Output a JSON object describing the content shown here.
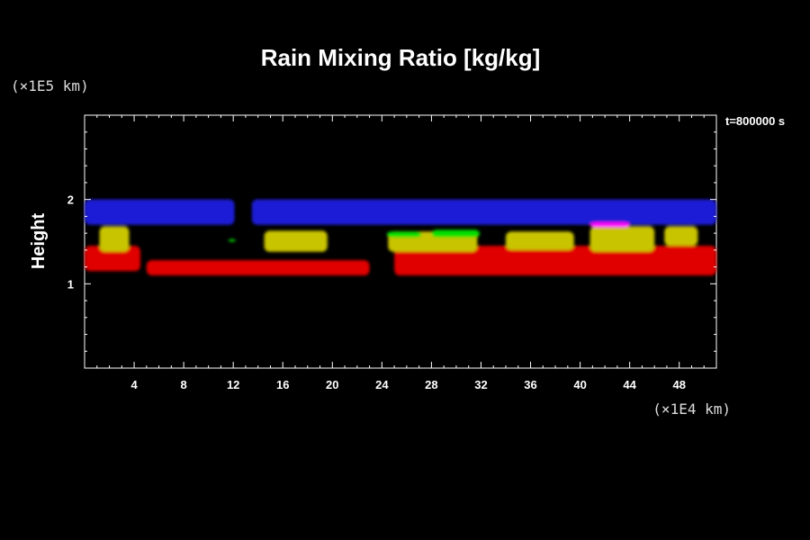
{
  "chart_data": {
    "type": "heatmap",
    "title": "Rain Mixing Ratio [kg/kg]",
    "ylabel": "Height",
    "y_unit": "(×1E5 km)",
    "x_unit": "(×1E4 km)",
    "time_label": "t=800000 s",
    "xlim": [
      0,
      51
    ],
    "ylim": [
      0,
      3
    ],
    "x_ticks": [
      "4",
      "8",
      "12",
      "16",
      "20",
      "24",
      "28",
      "32",
      "36",
      "40",
      "44",
      "48"
    ],
    "x_tick_values": [
      4,
      8,
      12,
      16,
      20,
      24,
      28,
      32,
      36,
      40,
      44,
      48
    ],
    "y_ticks": [
      "1",
      "2"
    ],
    "y_tick_values": [
      1,
      2
    ],
    "colors": {
      "blue": "#1a1fd6",
      "red": "#e00000",
      "yellow": "#c9c400",
      "green": "#00e000",
      "magenta": "#ff00ff"
    },
    "regions": [
      {
        "color": "blue",
        "x": [
          0,
          12.1
        ],
        "y": [
          1.7,
          2.0
        ]
      },
      {
        "color": "blue",
        "x": [
          13.5,
          51
        ],
        "y": [
          1.7,
          2.0
        ]
      },
      {
        "color": "red",
        "x": [
          0,
          4.5
        ],
        "y": [
          1.15,
          1.45
        ]
      },
      {
        "color": "red",
        "x": [
          5,
          23
        ],
        "y": [
          1.1,
          1.28
        ]
      },
      {
        "color": "red",
        "x": [
          25,
          51
        ],
        "y": [
          1.1,
          1.45
        ]
      },
      {
        "color": "yellow",
        "x": [
          1.2,
          3.6
        ],
        "y": [
          1.38,
          1.68
        ]
      },
      {
        "color": "yellow",
        "x": [
          14.5,
          19.6
        ],
        "y": [
          1.38,
          1.63
        ]
      },
      {
        "color": "yellow",
        "x": [
          24.5,
          31.7
        ],
        "y": [
          1.38,
          1.62
        ]
      },
      {
        "color": "yellow",
        "x": [
          34,
          39.5
        ],
        "y": [
          1.4,
          1.62
        ]
      },
      {
        "color": "yellow",
        "x": [
          40.8,
          46
        ],
        "y": [
          1.38,
          1.68
        ]
      },
      {
        "color": "yellow",
        "x": [
          46.8,
          49.5
        ],
        "y": [
          1.45,
          1.68
        ]
      },
      {
        "color": "green",
        "x": [
          11.6,
          12.2
        ],
        "y": [
          1.5,
          1.53
        ]
      },
      {
        "color": "green",
        "x": [
          24.4,
          27.2
        ],
        "y": [
          1.55,
          1.62
        ]
      },
      {
        "color": "green",
        "x": [
          28,
          31.9
        ],
        "y": [
          1.55,
          1.64
        ]
      },
      {
        "color": "magenta",
        "x": [
          40.8,
          44
        ],
        "y": [
          1.67,
          1.73
        ]
      }
    ]
  }
}
